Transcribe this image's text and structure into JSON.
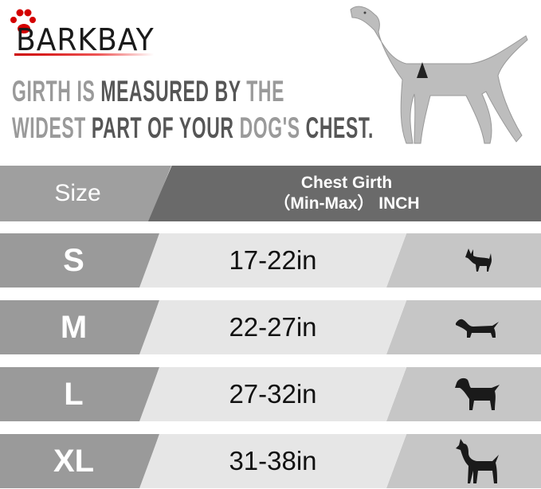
{
  "brand": {
    "logo_text": "BARKBAY",
    "accent": "#d40000"
  },
  "headline": {
    "line1": [
      {
        "t": "GIRTH IS ",
        "tone": "light"
      },
      {
        "t": "MEASURED BY ",
        "tone": "dark"
      },
      {
        "t": "THE",
        "tone": "light"
      }
    ],
    "line2": [
      {
        "t": "WIDEST ",
        "tone": "light"
      },
      {
        "t": "PART OF YOUR ",
        "tone": "dark"
      },
      {
        "t": "DOG'S ",
        "tone": "light"
      },
      {
        "t": "CHEST.",
        "tone": "dark"
      }
    ]
  },
  "table": {
    "header": {
      "size": "Size",
      "girth_line1": "Chest Girth",
      "girth_line2": "（Min-Max） INCH"
    },
    "rows": [
      {
        "size": "S",
        "girth": "17-22in",
        "icon": "chihuahua-silhouette-icon"
      },
      {
        "size": "M",
        "girth": "22-27in",
        "icon": "dachshund-silhouette-icon"
      },
      {
        "size": "L",
        "girth": "27-32in",
        "icon": "labrador-silhouette-icon"
      },
      {
        "size": "XL",
        "girth": "31-38in",
        "icon": "great-dane-silhouette-icon"
      }
    ]
  }
}
